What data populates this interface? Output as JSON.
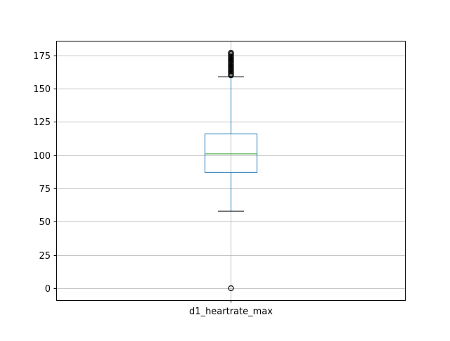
{
  "chart_data": {
    "type": "box",
    "title": "",
    "xlabel": "",
    "ylabel": "",
    "categories": [
      "d1_heartrate_max"
    ],
    "ylim": [
      -9,
      186
    ],
    "yticks": [
      0,
      25,
      50,
      75,
      100,
      125,
      150,
      175
    ],
    "grid": true,
    "boxes": [
      {
        "category": "d1_heartrate_max",
        "whisker_low": 58,
        "q1": 87,
        "median": 101,
        "q3": 116,
        "whisker_high": 159,
        "outliers_high": [
          160,
          161,
          162,
          163,
          164,
          165,
          166,
          167,
          168,
          169,
          170,
          171,
          172,
          173,
          174,
          175,
          176,
          177
        ],
        "outliers_low": [
          0
        ]
      }
    ],
    "colors": {
      "box": "#1f77b4",
      "median": "#2ca02c",
      "whisker_cap": "#000000",
      "grid": "#b0b0b0",
      "outlier": "#000000"
    }
  }
}
